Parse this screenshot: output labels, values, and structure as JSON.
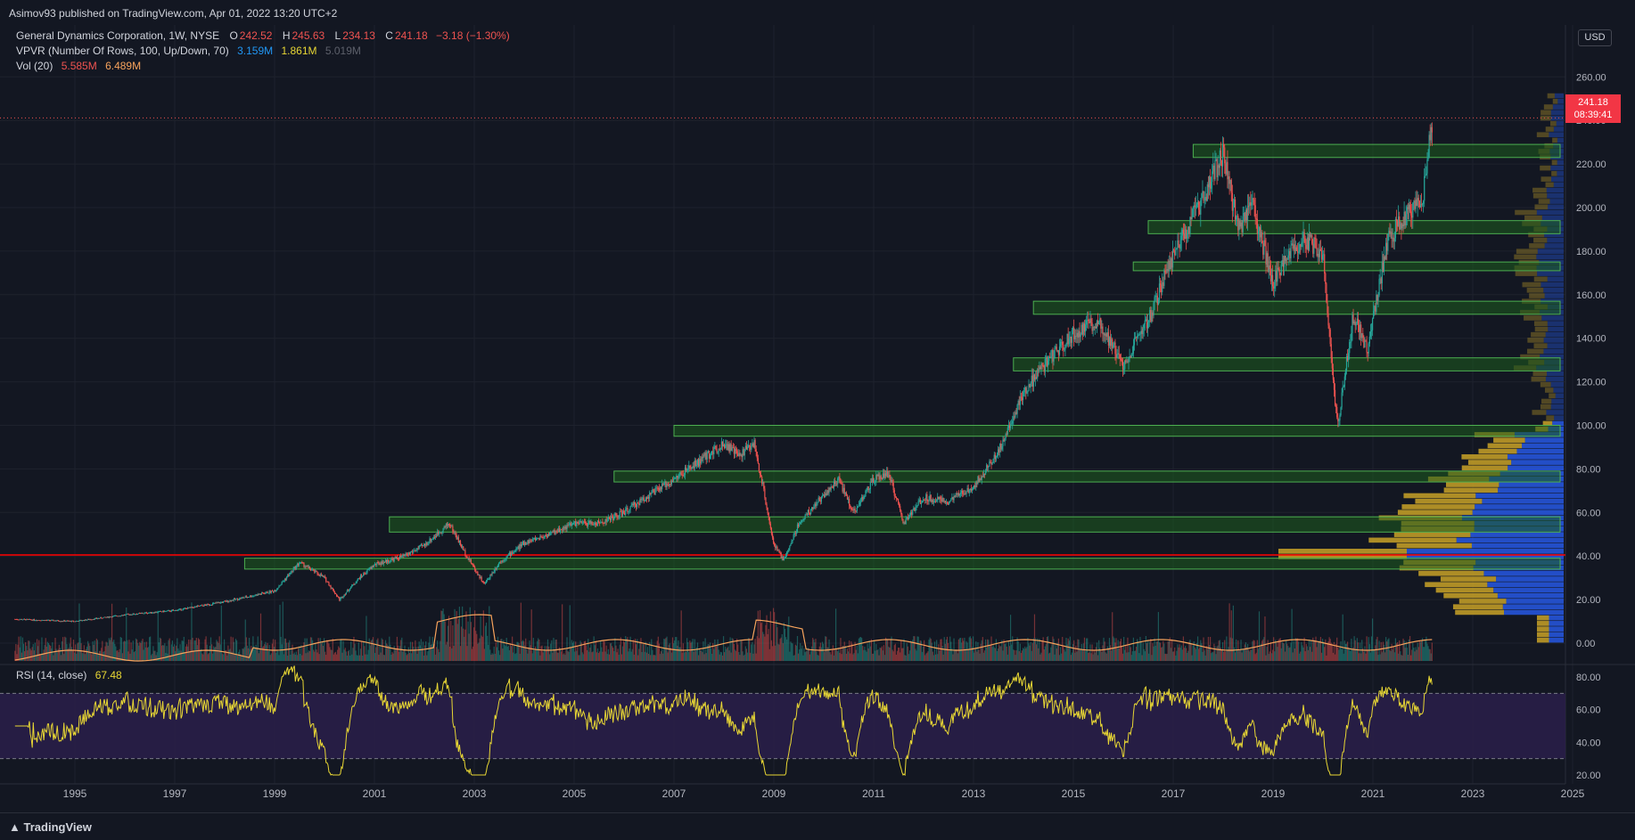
{
  "publish_line": "Asimov93 published on TradingView.com, Apr 01, 2022 13:20 UTC+2",
  "legend": {
    "symbol": "General Dynamics Corporation, 1W, NYSE",
    "o_label": "O",
    "o": "242.52",
    "h_label": "H",
    "h": "245.63",
    "l_label": "L",
    "l": "234.13",
    "c_label": "C",
    "c": "241.18",
    "change": "−3.18 (−1.30%)",
    "vpvr_label": "VPVR (Number Of Rows, 100, Up/Down, 70)",
    "vpvr_up": "3.159M",
    "vpvr_down": "1.861M",
    "vpvr_total": "5.019M",
    "vol_label": "Vol (20)",
    "vol_value": "5.585M",
    "vol_ma": "6.489M",
    "rsi_label": "RSI (14, close)",
    "rsi_value": "67.48"
  },
  "currency": "USD",
  "price_badge": {
    "price": "241.18",
    "countdown": "08:39:41"
  },
  "footer_brand": "TradingView",
  "colors": {
    "background": "#131722",
    "up": "#26a69a",
    "down": "#ef5350",
    "zone_fill": "#1e5c1e",
    "zone_stroke": "#4caf50",
    "support_line": "#ff0000",
    "vpvr_up": "#2962ff",
    "vpvr_down": "#c9a227",
    "rsi_line": "#e8d734",
    "rsi_band": "#2a1f4a",
    "volume_ma": "#f7a35c",
    "badge": "#f23645"
  },
  "chart_data": {
    "type": "candlestick",
    "timeframe": "1W",
    "y_ticks": [
      "260.00",
      "240.00",
      "220.00",
      "200.00",
      "180.00",
      "160.00",
      "140.00",
      "120.00",
      "100.00",
      "80.00",
      "60.00",
      "40.00",
      "20.00",
      "0.00"
    ],
    "x_ticks": [
      "1995",
      "1997",
      "1999",
      "2001",
      "2003",
      "2005",
      "2007",
      "2009",
      "2011",
      "2013",
      "2015",
      "2017",
      "2019",
      "2021",
      "2023",
      "2025"
    ],
    "rsi_ticks": [
      "80.00",
      "60.00",
      "40.00",
      "20.00"
    ],
    "rsi_bands": [
      70,
      30
    ],
    "last_price": 241.18,
    "support_line_price": 40.5,
    "zones": [
      {
        "from": 1998.4,
        "low": 34,
        "high": 39
      },
      {
        "from": 2001.3,
        "low": 51,
        "high": 58
      },
      {
        "from": 2005.8,
        "low": 74,
        "high": 79
      },
      {
        "from": 2007.0,
        "low": 95,
        "high": 100
      },
      {
        "from": 2013.8,
        "low": 125,
        "high": 131
      },
      {
        "from": 2014.2,
        "low": 151,
        "high": 157
      },
      {
        "from": 2016.2,
        "low": 171,
        "high": 175
      },
      {
        "from": 2016.5,
        "low": 188,
        "high": 194
      },
      {
        "from": 2017.4,
        "low": 223,
        "high": 229
      }
    ],
    "price_path": [
      [
        1993.8,
        11
      ],
      [
        1995.0,
        10
      ],
      [
        1996.0,
        13
      ],
      [
        1997.0,
        15
      ],
      [
        1998.0,
        19
      ],
      [
        1999.0,
        24
      ],
      [
        1999.5,
        37
      ],
      [
        2000.0,
        30
      ],
      [
        2000.3,
        20
      ],
      [
        2000.7,
        30
      ],
      [
        2001.0,
        36
      ],
      [
        2001.6,
        40
      ],
      [
        2002.0,
        45
      ],
      [
        2002.5,
        55
      ],
      [
        2002.8,
        42
      ],
      [
        2003.2,
        27
      ],
      [
        2003.5,
        37
      ],
      [
        2004.0,
        46
      ],
      [
        2004.5,
        50
      ],
      [
        2005.0,
        55
      ],
      [
        2005.5,
        55
      ],
      [
        2006.0,
        60
      ],
      [
        2006.5,
        68
      ],
      [
        2007.0,
        75
      ],
      [
        2007.6,
        85
      ],
      [
        2008.0,
        92
      ],
      [
        2008.3,
        86
      ],
      [
        2008.6,
        92
      ],
      [
        2008.8,
        70
      ],
      [
        2009.0,
        45
      ],
      [
        2009.2,
        38
      ],
      [
        2009.5,
        55
      ],
      [
        2010.0,
        68
      ],
      [
        2010.3,
        75
      ],
      [
        2010.6,
        60
      ],
      [
        2011.0,
        75
      ],
      [
        2011.3,
        78
      ],
      [
        2011.6,
        55
      ],
      [
        2012.0,
        67
      ],
      [
        2012.5,
        65
      ],
      [
        2013.0,
        72
      ],
      [
        2013.5,
        88
      ],
      [
        2014.0,
        115
      ],
      [
        2014.5,
        130
      ],
      [
        2015.0,
        142
      ],
      [
        2015.5,
        148
      ],
      [
        2016.0,
        128
      ],
      [
        2016.5,
        148
      ],
      [
        2017.0,
        178
      ],
      [
        2017.5,
        200
      ],
      [
        2018.0,
        225
      ],
      [
        2018.3,
        190
      ],
      [
        2018.6,
        200
      ],
      [
        2019.0,
        165
      ],
      [
        2019.3,
        180
      ],
      [
        2019.6,
        185
      ],
      [
        2020.0,
        180
      ],
      [
        2020.2,
        120
      ],
      [
        2020.3,
        100
      ],
      [
        2020.6,
        150
      ],
      [
        2020.9,
        135
      ],
      [
        2021.0,
        150
      ],
      [
        2021.3,
        185
      ],
      [
        2021.6,
        195
      ],
      [
        2022.0,
        205
      ],
      [
        2022.2,
        242
      ]
    ],
    "volume_ma_series": "smoothed 20-week volume average",
    "rsi_last": 67.48
  }
}
